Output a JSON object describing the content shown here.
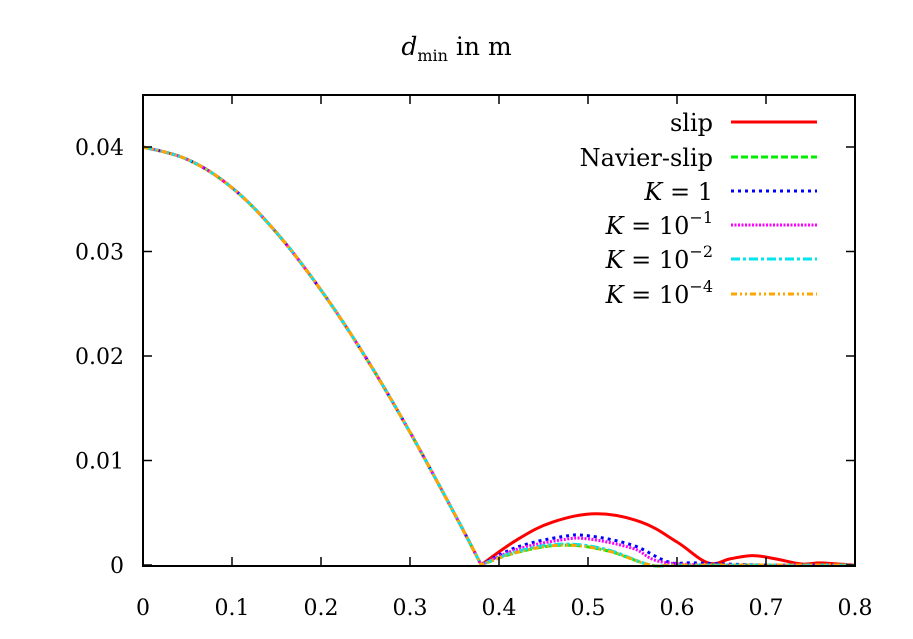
{
  "chart_data": {
    "type": "line",
    "title": "d_min in m",
    "title_parts": {
      "symbol": "d",
      "subscript": "min",
      "suffix": " in m"
    },
    "xlabel": "",
    "ylabel": "",
    "xlim": [
      0,
      0.8
    ],
    "ylim": [
      -0.0003,
      0.0446
    ],
    "xticks": [
      0,
      0.1,
      0.2,
      0.3,
      0.4,
      0.5,
      0.6,
      0.7,
      0.8
    ],
    "xtick_labels": [
      "0",
      "0.1",
      "0.2",
      "0.3",
      "0.4",
      "0.5",
      "0.6",
      "0.7",
      "0.8"
    ],
    "yticks": [
      0,
      0.01,
      0.02,
      0.03,
      0.04
    ],
    "ytick_labels": [
      "0",
      "0.01",
      "0.02",
      "0.03",
      "0.04"
    ],
    "grid": false,
    "legend_position": "top-right inside",
    "series": [
      {
        "name": "slip",
        "color": "#ff0000",
        "dash": "solid",
        "x": [
          0,
          0.05,
          0.1,
          0.15,
          0.2,
          0.25,
          0.3,
          0.35,
          0.38,
          0.42,
          0.46,
          0.51,
          0.56,
          0.6,
          0.635,
          0.66,
          0.685,
          0.71,
          0.74,
          0.76,
          0.78,
          0.8
        ],
        "y": [
          0.04,
          0.0388,
          0.0361,
          0.0318,
          0.0263,
          0.0199,
          0.0127,
          0.0049,
          0.0,
          0.0024,
          0.0041,
          0.0049,
          0.0041,
          0.0022,
          0.0002,
          0.0006,
          0.0009,
          0.0006,
          0.0001,
          0.0002,
          0.0001,
          0.0
        ]
      },
      {
        "name": "Navier-slip",
        "color": "#00ee00",
        "dash": "dashed",
        "x": [
          0,
          0.05,
          0.1,
          0.15,
          0.2,
          0.25,
          0.3,
          0.35,
          0.38,
          0.42,
          0.47,
          0.52,
          0.57,
          0.6,
          0.7,
          0.8
        ],
        "y": [
          0.04,
          0.0388,
          0.0361,
          0.0318,
          0.0263,
          0.0199,
          0.0127,
          0.0049,
          0.0,
          0.0012,
          0.0019,
          0.0014,
          0.0,
          0.0,
          0.0,
          0.0
        ]
      },
      {
        "name": "K = 1",
        "color": "#0000ff",
        "dash": "dotted",
        "x": [
          0,
          0.05,
          0.1,
          0.15,
          0.2,
          0.25,
          0.3,
          0.35,
          0.38,
          0.42,
          0.47,
          0.5,
          0.55,
          0.59,
          0.62,
          0.7,
          0.8
        ],
        "y": [
          0.04,
          0.0388,
          0.0361,
          0.0318,
          0.0263,
          0.0199,
          0.0127,
          0.0049,
          0.0,
          0.0017,
          0.0027,
          0.0028,
          0.0019,
          0.0003,
          0.0002,
          0.0,
          0.0
        ]
      },
      {
        "name": "K = 10^-1",
        "color": "#ff00ff",
        "dash": "fine-dotted",
        "x": [
          0,
          0.05,
          0.1,
          0.15,
          0.2,
          0.25,
          0.3,
          0.35,
          0.38,
          0.42,
          0.47,
          0.5,
          0.55,
          0.59,
          0.7,
          0.8
        ],
        "y": [
          0.04,
          0.0388,
          0.0361,
          0.0318,
          0.0263,
          0.0199,
          0.0127,
          0.0049,
          0.0,
          0.0015,
          0.0024,
          0.0025,
          0.0016,
          0.0002,
          0.0,
          0.0
        ]
      },
      {
        "name": "K = 10^-2",
        "color": "#00e5ee",
        "dash": "dash-dot",
        "x": [
          0,
          0.05,
          0.1,
          0.15,
          0.2,
          0.25,
          0.3,
          0.35,
          0.38,
          0.42,
          0.47,
          0.52,
          0.57,
          0.6,
          0.7,
          0.8
        ],
        "y": [
          0.04,
          0.0388,
          0.0361,
          0.0318,
          0.0263,
          0.0199,
          0.0127,
          0.0049,
          0.0,
          0.0013,
          0.002,
          0.0015,
          0.0,
          0.0,
          0.0,
          0.0
        ]
      },
      {
        "name": "K = 10^-4",
        "color": "#ffa500",
        "dash": "dash-dot-dot",
        "x": [
          0,
          0.05,
          0.1,
          0.15,
          0.2,
          0.25,
          0.3,
          0.35,
          0.38,
          0.42,
          0.47,
          0.52,
          0.57,
          0.6,
          0.7,
          0.8
        ],
        "y": [
          0.04,
          0.0388,
          0.0361,
          0.0318,
          0.0263,
          0.0199,
          0.0127,
          0.0049,
          0.0,
          0.0012,
          0.0019,
          0.0014,
          0.0,
          0.0,
          0.0,
          0.0
        ]
      }
    ]
  },
  "legend": {
    "items": [
      {
        "label": "slip"
      },
      {
        "label": "Navier-slip"
      },
      {
        "label": "K = 1",
        "base": "K = 1",
        "exp": ""
      },
      {
        "label": "K = 10^-1",
        "base": "K = 10",
        "exp": "−1"
      },
      {
        "label": "K = 10^-2",
        "base": "K = 10",
        "exp": "−2"
      },
      {
        "label": "K = 10^-4",
        "base": "K = 10",
        "exp": "−4"
      }
    ]
  }
}
